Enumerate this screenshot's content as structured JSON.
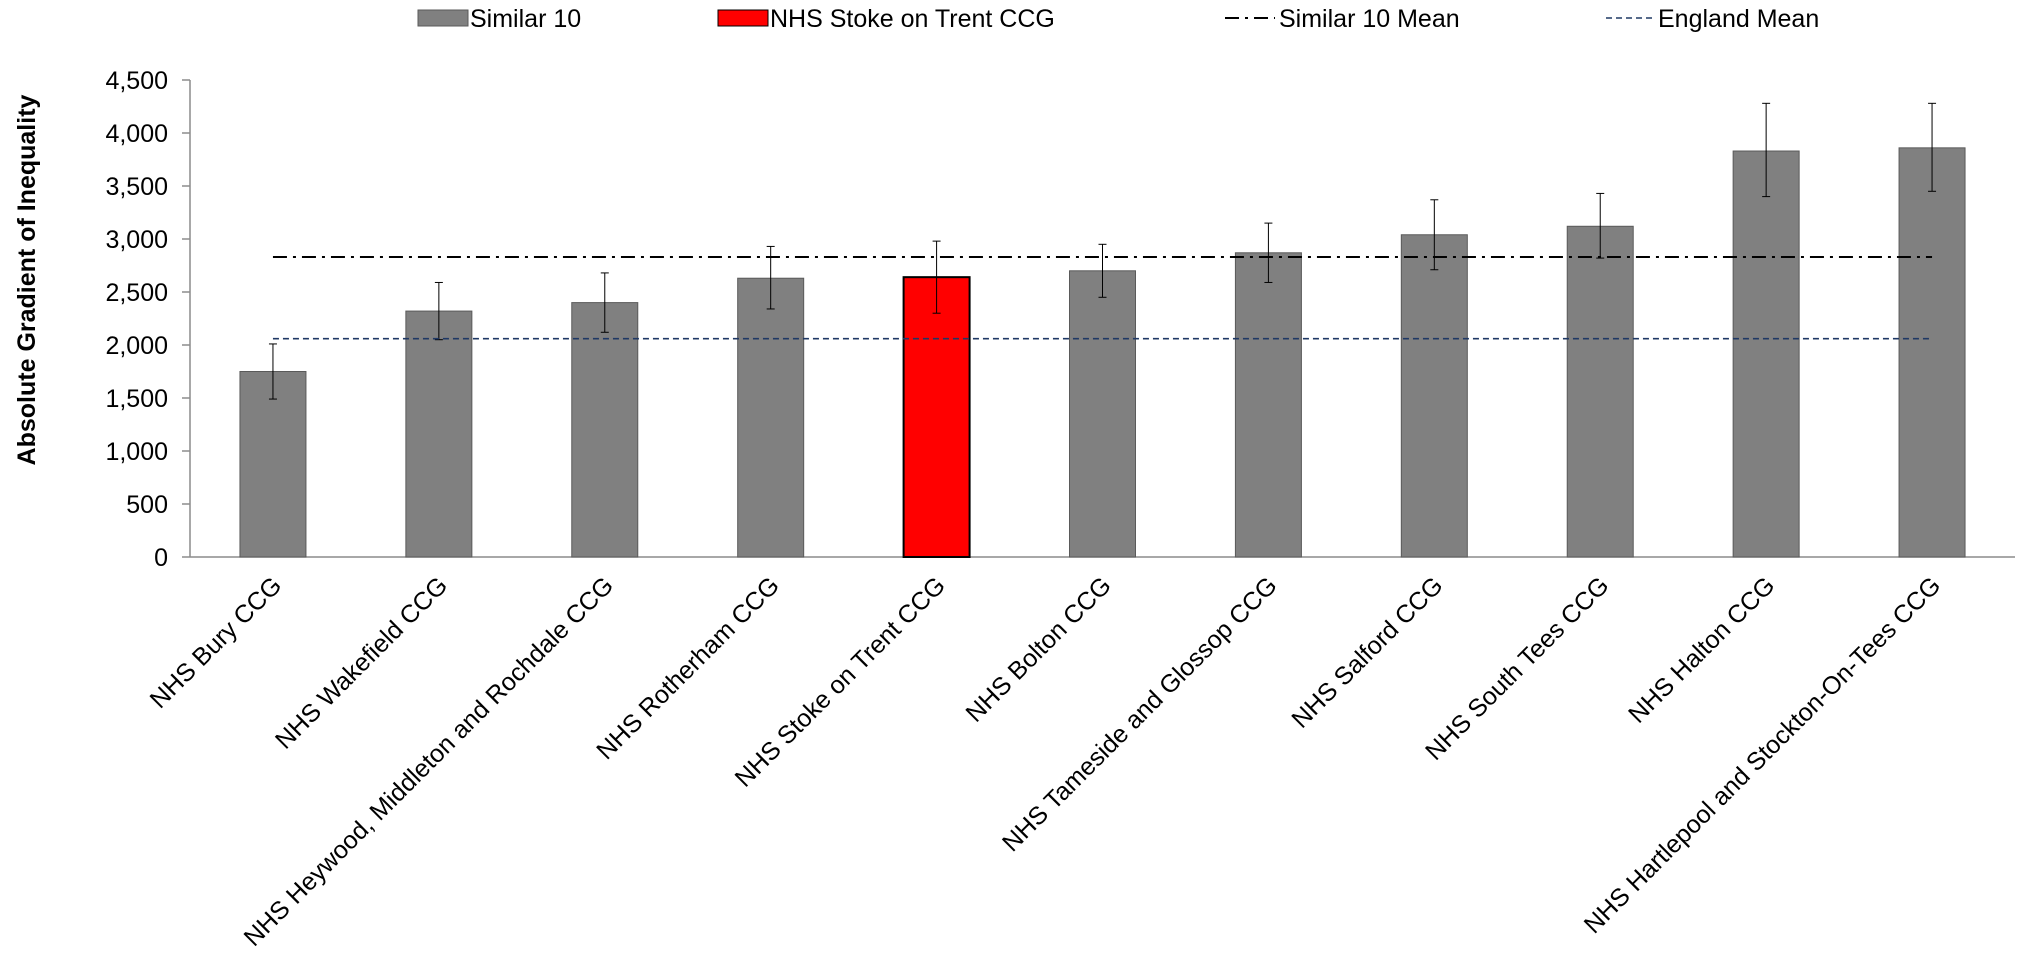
{
  "chart_data": {
    "type": "bar",
    "title": "",
    "xlabel": "",
    "ylabel": "Absolute Gradient of Inequality",
    "ylim": [
      0,
      4500
    ],
    "yticks": [
      0,
      500,
      1000,
      1500,
      2000,
      2500,
      3000,
      3500,
      4000,
      4500
    ],
    "ytick_labels": [
      "0",
      "500",
      "1,000",
      "1,500",
      "2,000",
      "2,500",
      "3,000",
      "3,500",
      "4,000",
      "4,500"
    ],
    "grid": false,
    "legend_position": "top",
    "categories": [
      "NHS Bury CCG",
      "NHS Wakefield CCG",
      "NHS Heywood, Middleton and Rochdale CCG",
      "NHS Rotherham CCG",
      "NHS Stoke on Trent CCG",
      "NHS Bolton CCG",
      "NHS Tameside and Glossop CCG",
      "NHS Salford CCG",
      "NHS South Tees CCG",
      "NHS Halton CCG",
      "NHS Hartlepool and Stockton-On-Tees CCG"
    ],
    "values": [
      1750,
      2320,
      2400,
      2630,
      2640,
      2700,
      2870,
      3040,
      3120,
      3830,
      3860
    ],
    "error_low": [
      1490,
      2050,
      2120,
      2340,
      2300,
      2450,
      2590,
      2710,
      2820,
      3400,
      3450
    ],
    "error_high": [
      2010,
      2590,
      2680,
      2930,
      2980,
      2950,
      3150,
      3370,
      3430,
      4280,
      4280
    ],
    "highlight_index": 4,
    "similar10_mean": 2830,
    "england_mean": 2060,
    "legend": [
      {
        "label": "Similar 10",
        "kind": "bar",
        "color": "#808080"
      },
      {
        "label": "NHS Stoke on Trent CCG",
        "kind": "bar",
        "color": "#ff0000"
      },
      {
        "label": "Similar 10 Mean",
        "kind": "dashdot",
        "color": "#000000"
      },
      {
        "label": "England Mean",
        "kind": "dashed",
        "color": "#1f3864"
      }
    ],
    "colors": {
      "bar": "#808080",
      "highlight": "#ff0000",
      "similar10_mean_line": "#000000",
      "england_mean_line": "#1f3864"
    }
  }
}
